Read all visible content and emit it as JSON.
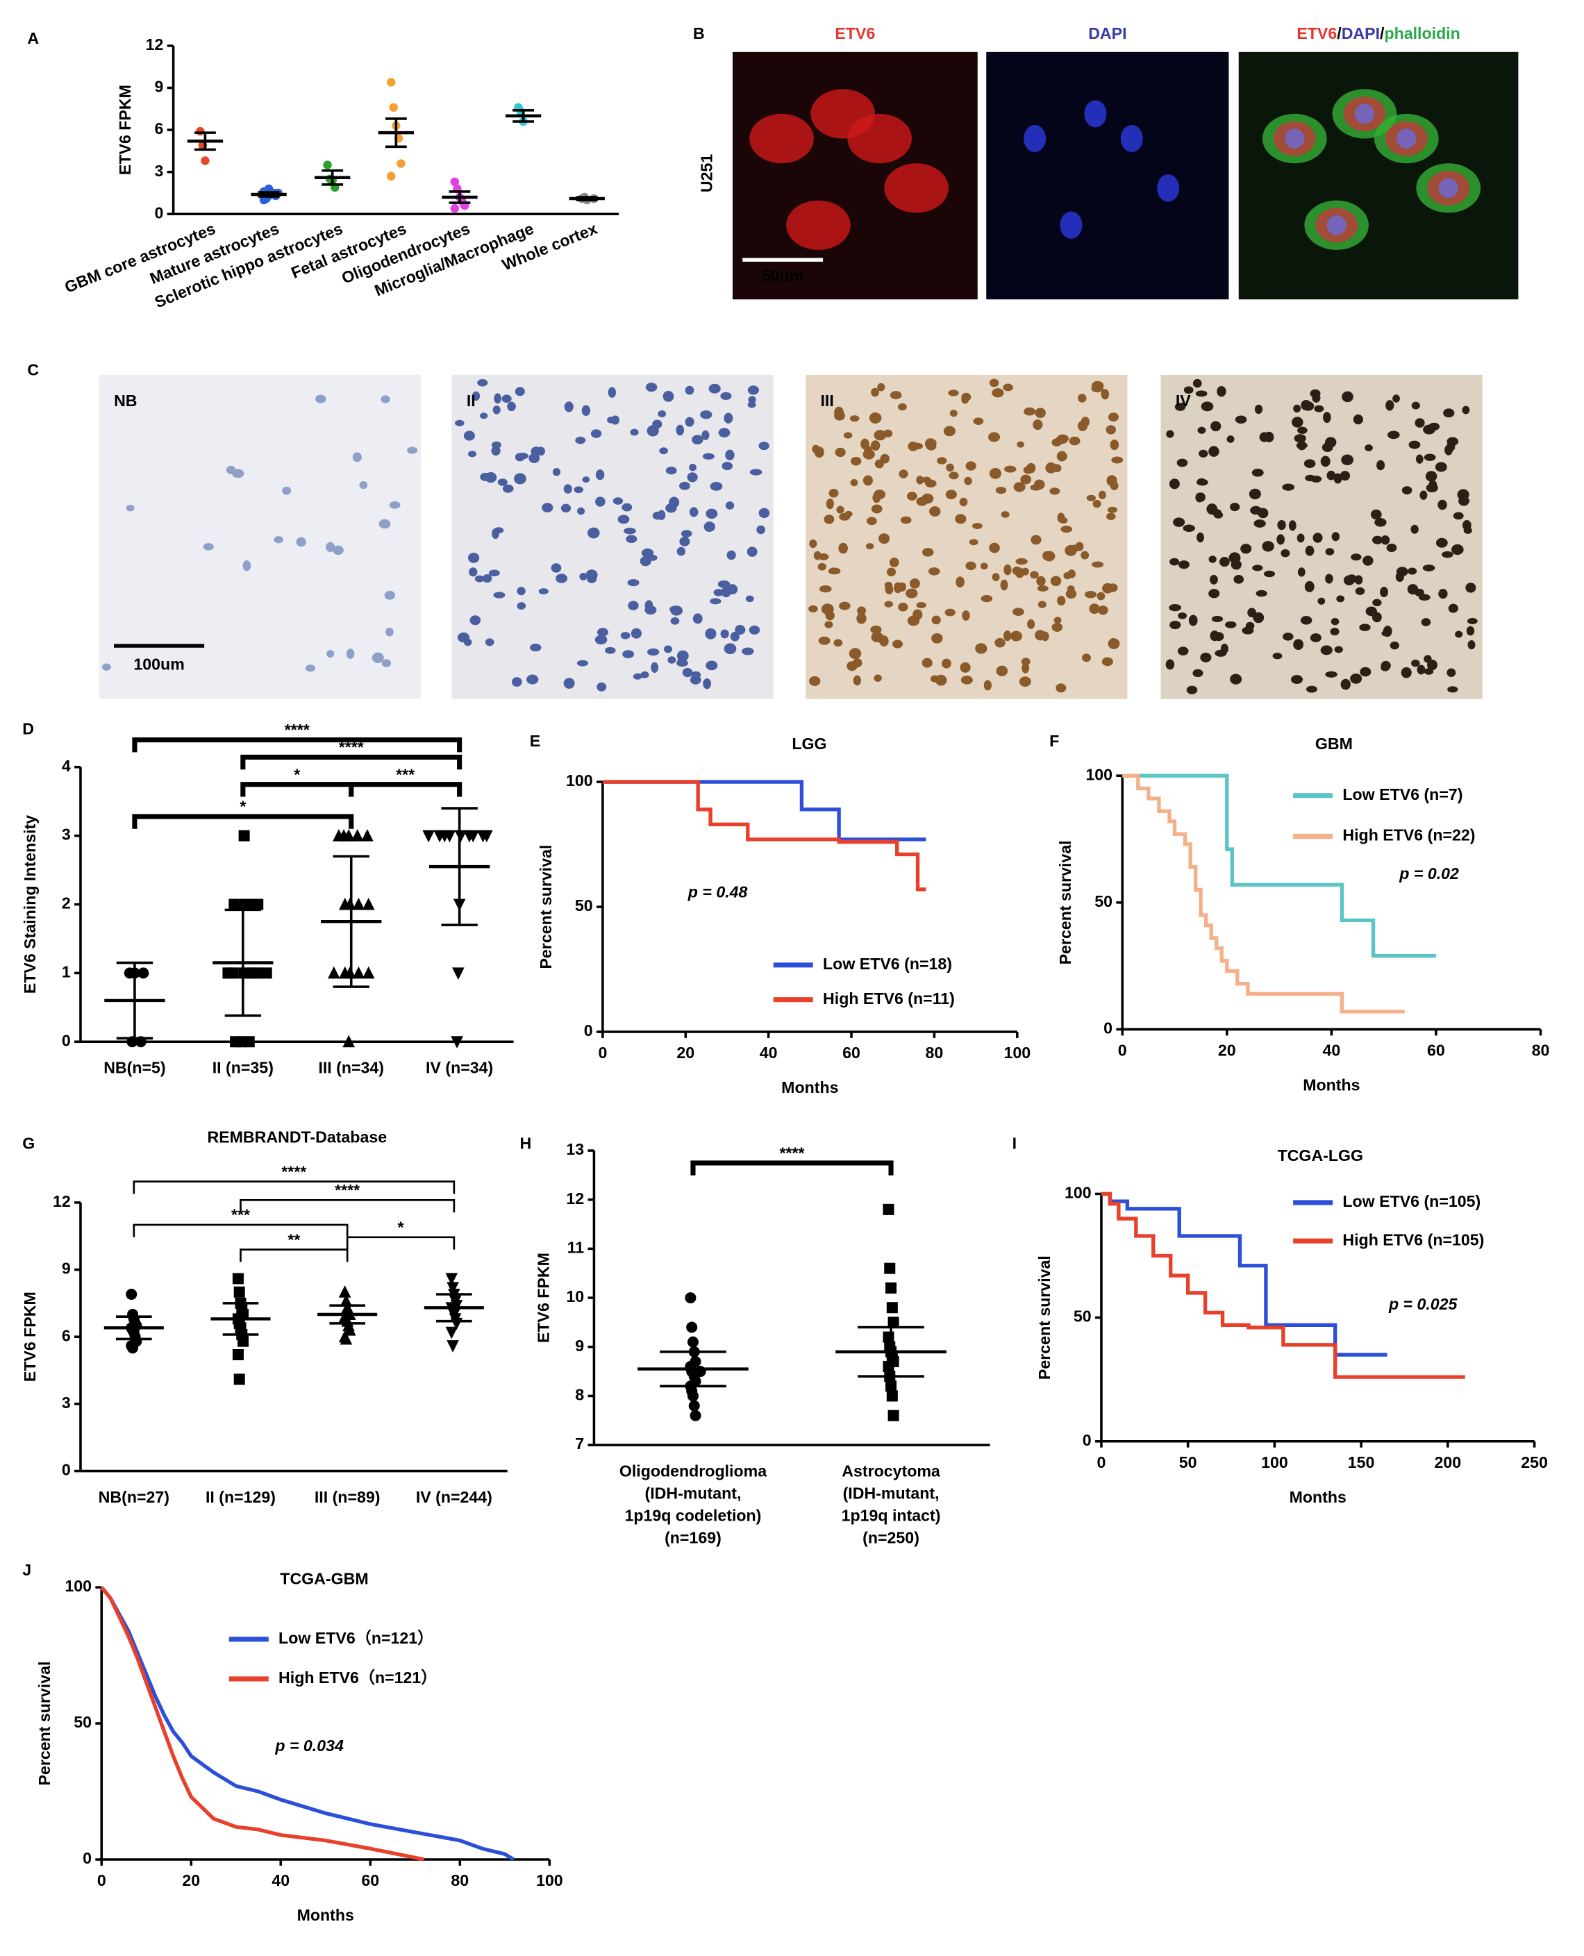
{
  "chart_data": [
    {
      "type": "dot",
      "panel": "A",
      "ylabel": "ETV6 FPKM",
      "categories": [
        "GBM core astrocytes",
        "Mature astrocytes",
        "Sclerotic hippo astrocytes",
        "Fetal astrocytes",
        "Oligodendrocytes",
        "Microglia/Macrophage",
        "Whole cortex"
      ],
      "values": [
        5.2,
        1.4,
        2.6,
        5.8,
        1.2,
        7.0,
        1.1
      ],
      "error": [
        0.6,
        0.15,
        0.5,
        1.0,
        0.4,
        0.4,
        0.1
      ],
      "points": [
        [
          5.9,
          4.9,
          3.8
        ],
        [
          1.0,
          1.2,
          1.3,
          1.4,
          1.5,
          1.6,
          1.1,
          1.8,
          1.3,
          1.5
        ],
        [
          3.5,
          2.5,
          2.4,
          1.9
        ],
        [
          9.4,
          7.6,
          6.3,
          5.4,
          3.6,
          2.7
        ],
        [
          2.3,
          1.8,
          1.2,
          0.9,
          0.6,
          0.4
        ],
        [
          7.6,
          7.3,
          6.6
        ],
        [
          1.1,
          1.2,
          1.0,
          1.1
        ]
      ],
      "colors": [
        "#e8472c",
        "#2b5fd9",
        "#2ca02c",
        "#f5a030",
        "#e040e0",
        "#2bc6d9",
        "#888888"
      ],
      "markers": [
        "circle",
        "circle",
        "circle",
        "circle",
        "circle",
        "circle",
        "circle"
      ],
      "ylim": [
        0,
        12
      ],
      "yticks": [
        0,
        3,
        6,
        9,
        12
      ]
    },
    {
      "type": "image",
      "panel": "B",
      "row_label": "U251",
      "scale_bar": "50um",
      "images": [
        {
          "label": [
            {
              "text": "ETV6",
              "color": "#e8342c"
            }
          ]
        },
        {
          "label": [
            {
              "text": "DAPI",
              "color": "#3a3aa8"
            }
          ]
        },
        {
          "label": [
            {
              "text": "ETV6",
              "color": "#e8342c"
            },
            {
              "text": "/",
              "color": "#000000"
            },
            {
              "text": "DAPI",
              "color": "#3a3aa8"
            },
            {
              "text": "/",
              "color": "#000000"
            },
            {
              "text": "phalloidin",
              "color": "#2aa84a"
            }
          ]
        }
      ]
    },
    {
      "type": "image",
      "panel": "C",
      "scale_bar": "100um",
      "images": [
        {
          "label": [
            {
              "text": "NB",
              "color": "#000000"
            }
          ]
        },
        {
          "label": [
            {
              "text": "II",
              "color": "#000000"
            }
          ]
        },
        {
          "label": [
            {
              "text": "III",
              "color": "#000000"
            }
          ]
        },
        {
          "label": [
            {
              "text": "IV",
              "color": "#000000"
            }
          ]
        }
      ]
    },
    {
      "type": "dot",
      "panel": "D",
      "ylabel": "ETV6 Staining Intensity",
      "categories": [
        "NB(n=5)",
        "II (n=35)",
        "III (n=34)",
        "IV (n=34)"
      ],
      "values": [
        0.6,
        1.15,
        1.75,
        2.55
      ],
      "error": [
        0.55,
        0.77,
        0.95,
        0.85
      ],
      "points": [
        [
          0,
          0,
          1,
          1,
          1
        ],
        [
          0,
          0,
          0,
          1,
          1,
          1,
          1,
          1,
          1,
          2,
          2,
          2,
          2,
          3
        ],
        [
          0,
          1,
          1,
          1,
          1,
          1,
          2,
          2,
          2,
          2,
          3,
          3,
          3,
          3,
          3
        ],
        [
          0,
          1,
          2,
          3,
          3,
          3,
          3,
          3,
          3,
          3,
          3,
          3
        ]
      ],
      "color": "#000000",
      "markers": [
        "circle",
        "square",
        "triangle",
        "triangle-down"
      ],
      "annotations": [
        "****",
        "****",
        "*",
        "***",
        "*"
      ],
      "ylim": [
        0,
        4
      ],
      "yticks": [
        0,
        1,
        2,
        3,
        4
      ]
    },
    {
      "type": "line",
      "panel": "E",
      "title": "LGG",
      "xlabel": "Months",
      "ylabel": "Percent survival",
      "annotation": "p = 0.48",
      "series": [
        {
          "name": "Low ETV6 (n=18)",
          "color": "#2b4fd9",
          "x": [
            0,
            48,
            48,
            57,
            57,
            78
          ],
          "values": [
            100,
            100,
            89,
            89,
            77,
            77
          ]
        },
        {
          "name": "High ETV6 (n=11)",
          "color": "#e8402a",
          "x": [
            0,
            23,
            23,
            26,
            26,
            35,
            35,
            57,
            57,
            71,
            71,
            76,
            76,
            78
          ],
          "values": [
            100,
            100,
            89,
            89,
            83,
            83,
            77,
            77,
            76,
            76,
            71,
            71,
            57,
            57
          ]
        }
      ],
      "xlim": [
        0,
        100
      ],
      "xticks": [
        0,
        20,
        40,
        60,
        80,
        100
      ],
      "ylim": [
        0,
        100
      ],
      "yticks": [
        0,
        50,
        100
      ]
    },
    {
      "type": "line",
      "panel": "F",
      "title": "GBM",
      "xlabel": "Months",
      "ylabel": "Percent survival",
      "annotation": "p = 0.02",
      "series": [
        {
          "name": "Low ETV6 (n=7)",
          "color": "#5bc4c4",
          "x": [
            0,
            20,
            20,
            21,
            21,
            42,
            42,
            48,
            48,
            60
          ],
          "values": [
            100,
            100,
            71,
            71,
            57,
            57,
            43,
            43,
            29,
            29
          ]
        },
        {
          "name": "High ETV6 (n=22)",
          "color": "#f5b08a",
          "x": [
            0,
            3,
            3,
            5,
            5,
            7,
            7,
            9,
            9,
            10,
            10,
            12,
            12,
            13,
            13,
            14,
            14,
            15,
            15,
            16,
            16,
            17,
            17,
            18,
            18,
            19,
            19,
            20,
            20,
            22,
            22,
            24,
            24,
            42,
            42,
            54
          ],
          "values": [
            100,
            100,
            95,
            95,
            91,
            91,
            86,
            86,
            82,
            82,
            77,
            77,
            73,
            73,
            64,
            64,
            55,
            55,
            45,
            45,
            41,
            41,
            36,
            36,
            32,
            32,
            27,
            27,
            23,
            23,
            18,
            18,
            14,
            14,
            7,
            7
          ]
        }
      ],
      "xlim": [
        0,
        80
      ],
      "xticks": [
        0,
        20,
        40,
        60,
        80
      ],
      "ylim": [
        0,
        100
      ],
      "yticks": [
        0,
        50,
        100
      ]
    },
    {
      "type": "dot",
      "panel": "G",
      "title": "REMBRANDT-Database",
      "ylabel": "ETV6 FPKM",
      "categories": [
        "NB(n=27)",
        "II (n=129)",
        "III (n=89)",
        "IV (n=244)"
      ],
      "values": [
        6.4,
        6.8,
        7.0,
        7.3
      ],
      "error": [
        0.5,
        0.7,
        0.4,
        0.6
      ],
      "points": [
        [
          7.9,
          7.0,
          6.8,
          6.6,
          6.5,
          6.4,
          6.3,
          6.2,
          6.0,
          5.8,
          5.6,
          5.5
        ],
        [
          8.6,
          8.0,
          7.5,
          7.2,
          7.0,
          6.8,
          6.6,
          6.4,
          6.1,
          5.8,
          5.2,
          4.1
        ],
        [
          8.0,
          7.6,
          7.3,
          7.1,
          7.0,
          6.9,
          6.8,
          6.7,
          6.5,
          6.3,
          6.0,
          5.9
        ],
        [
          8.6,
          8.2,
          7.9,
          7.6,
          7.4,
          7.3,
          7.2,
          7.0,
          6.8,
          6.6,
          6.2,
          5.6
        ]
      ],
      "color": "#000000",
      "markers": [
        "circle",
        "square",
        "triangle",
        "triangle-down"
      ],
      "annotations": [
        "****",
        "****",
        "***",
        "**",
        "*"
      ],
      "ylim": [
        0,
        12
      ],
      "yticks": [
        0,
        3,
        6,
        9,
        12
      ]
    },
    {
      "type": "dot",
      "panel": "H",
      "ylabel": "ETV6 FPKM",
      "categories": [
        [
          "Oligodendroglioma",
          "(IDH-mutant,",
          "1p19q codeletion)",
          "(n=169)"
        ],
        [
          "Astrocytoma",
          "(IDH-mutant,",
          "1p19q intact)",
          "(n=250)"
        ]
      ],
      "values": [
        8.55,
        8.9
      ],
      "error": [
        0.35,
        0.5
      ],
      "points": [
        [
          10.0,
          9.4,
          9.1,
          8.9,
          8.7,
          8.6,
          8.5,
          8.5,
          8.4,
          8.3,
          8.2,
          8.1,
          8.0,
          7.8,
          7.6
        ],
        [
          11.8,
          10.6,
          10.2,
          9.8,
          9.5,
          9.2,
          9.0,
          8.9,
          8.8,
          8.7,
          8.6,
          8.4,
          8.2,
          8.0,
          7.6
        ]
      ],
      "color": "#000000",
      "markers": [
        "circle",
        "square"
      ],
      "annotations": [
        "****"
      ],
      "ylim": [
        7,
        13
      ],
      "yticks": [
        7,
        8,
        9,
        10,
        11,
        12,
        13
      ]
    },
    {
      "type": "line",
      "panel": "I",
      "title": "TCGA-LGG",
      "xlabel": "Months",
      "ylabel": "Percent survival",
      "annotation": "p = 0.025",
      "series": [
        {
          "name": "Low ETV6 (n=105)",
          "color": "#2b4fd9",
          "x": [
            0,
            5,
            5,
            15,
            15,
            45,
            45,
            80,
            80,
            95,
            95,
            135,
            135,
            165
          ],
          "values": [
            100,
            100,
            97,
            97,
            94,
            94,
            83,
            83,
            71,
            71,
            47,
            47,
            35,
            35
          ]
        },
        {
          "name": "High ETV6 (n=105)",
          "color": "#e8402a",
          "x": [
            0,
            5,
            5,
            10,
            10,
            20,
            20,
            30,
            30,
            40,
            40,
            50,
            50,
            60,
            60,
            70,
            70,
            85,
            85,
            105,
            105,
            135,
            135,
            210
          ],
          "values": [
            100,
            100,
            96,
            96,
            90,
            90,
            83,
            83,
            75,
            75,
            67,
            67,
            60,
            60,
            52,
            52,
            47,
            47,
            46,
            46,
            39,
            39,
            26,
            26
          ]
        }
      ],
      "xlim": [
        0,
        250
      ],
      "xticks": [
        0,
        50,
        100,
        150,
        200,
        250
      ],
      "ylim": [
        0,
        100
      ],
      "yticks": [
        0,
        50,
        100
      ]
    },
    {
      "type": "line",
      "panel": "J",
      "title": "TCGA-GBM",
      "xlabel": "Months",
      "ylabel": "Percent survival",
      "annotation": "p = 0.034",
      "series": [
        {
          "name": "Low ETV6（n=121）",
          "color": "#2b4fd9",
          "x": [
            0,
            2,
            4,
            6,
            8,
            10,
            12,
            14,
            16,
            18,
            20,
            25,
            30,
            35,
            40,
            50,
            60,
            70,
            80,
            85,
            90,
            92
          ],
          "values": [
            100,
            96,
            90,
            84,
            76,
            68,
            60,
            53,
            47,
            43,
            38,
            32,
            27,
            25,
            22,
            17,
            13,
            10,
            7,
            4,
            2,
            0
          ]
        },
        {
          "name": "High ETV6（n=121）",
          "color": "#e8402a",
          "x": [
            0,
            2,
            4,
            6,
            8,
            10,
            12,
            14,
            16,
            18,
            20,
            25,
            30,
            35,
            40,
            50,
            60,
            72
          ],
          "values": [
            100,
            96,
            89,
            82,
            74,
            65,
            56,
            47,
            38,
            30,
            23,
            15,
            12,
            11,
            9,
            7,
            4,
            0
          ]
        }
      ],
      "xlim": [
        0,
        100
      ],
      "xticks": [
        0,
        20,
        40,
        60,
        80,
        100
      ],
      "ylim": [
        0,
        100
      ],
      "yticks": [
        0,
        50,
        100
      ]
    }
  ]
}
